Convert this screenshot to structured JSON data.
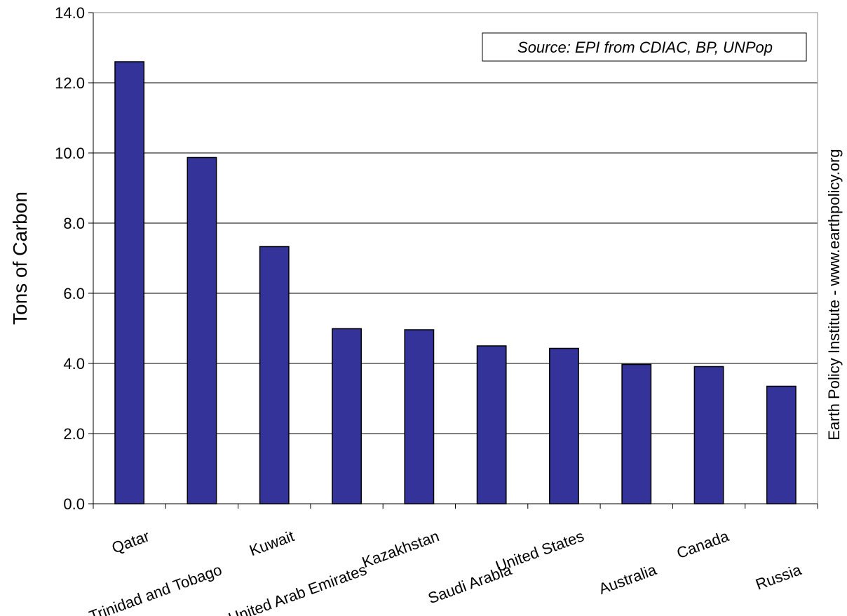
{
  "chart_data": {
    "type": "bar",
    "categories": [
      "Qatar",
      "Trinidad and Tobago",
      "Kuwait",
      "United Arab Emirates",
      "Kazakhstan",
      "Saudi Arabia",
      "United States",
      "Australia",
      "Canada",
      "Russia"
    ],
    "values": [
      12.6,
      9.87,
      7.33,
      4.99,
      4.96,
      4.5,
      4.43,
      3.97,
      3.91,
      3.35
    ],
    "ylabel": "Tons of Carbon",
    "xlabel": "",
    "ylim": [
      0,
      14
    ],
    "yticks": [
      "0.0",
      "2.0",
      "4.0",
      "6.0",
      "8.0",
      "10.0",
      "12.0",
      "14.0"
    ],
    "annotation": "Source: EPI from CDIAC, BP, UNPop",
    "side_note": "Earth Policy Institute - www.earthpolicy.org",
    "bar_color": "#333399",
    "grid": true,
    "legend": "none"
  }
}
